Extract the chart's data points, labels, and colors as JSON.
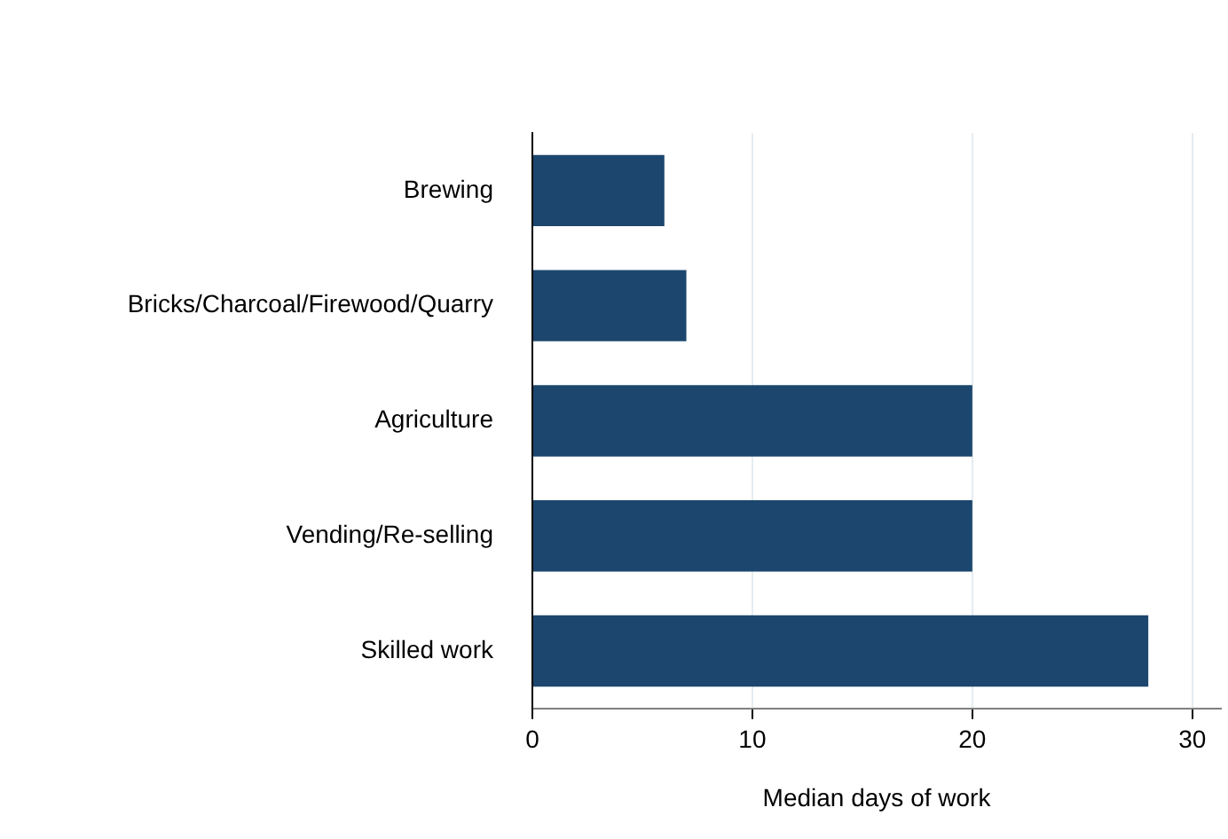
{
  "chart_data": {
    "type": "bar",
    "orientation": "horizontal",
    "xlabel": "Median days of work",
    "categories": [
      "Brewing",
      "Bricks/Charcoal/Firewood/Quarry",
      "Agriculture",
      "Vending/Re-selling",
      "Skilled work"
    ],
    "values": [
      6,
      7,
      20,
      20,
      28
    ],
    "color": "#1c466e",
    "xlim": [
      0,
      31.3
    ],
    "xticks": [
      0,
      10,
      20,
      30
    ],
    "grid": "x",
    "legend": false
  }
}
